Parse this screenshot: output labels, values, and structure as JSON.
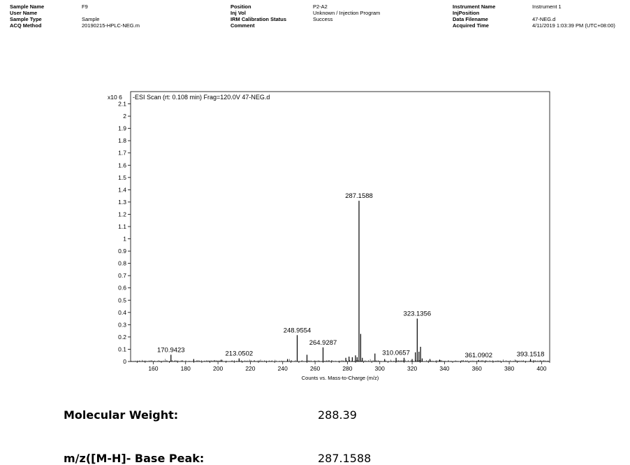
{
  "header": {
    "columns": [
      {
        "rows": [
          {
            "label": "Sample Name",
            "value": "F9"
          },
          {
            "label": "User Name",
            "value": ""
          },
          {
            "label": "Sample Type",
            "value": "Sample"
          },
          {
            "label": "ACQ Method",
            "value": "20190215-HPLC-NEG.m"
          }
        ]
      },
      {
        "rows": [
          {
            "label": "Position",
            "value": "P2-A2"
          },
          {
            "label": "Inj Vol",
            "value": "Unknown / Injection Program"
          },
          {
            "label": "IRM Calibration Status",
            "value": "Success"
          },
          {
            "label": "Comment",
            "value": ""
          }
        ]
      },
      {
        "rows": [
          {
            "label": "Instrument Name",
            "value": "Instrument 1"
          },
          {
            "label": "InjPosition",
            "value": ""
          },
          {
            "label": "Data Filename",
            "value": "47-NEG.d"
          },
          {
            "label": "Acquired Time",
            "value": "4/11/2019 1:03:39 PM (UTC+08:00)"
          }
        ]
      }
    ]
  },
  "chart_data": {
    "type": "bar",
    "title": "-ESI Scan (rt: 0.108 min) Frag=120.0V 47-NEG.d",
    "y_scale_label": "x10 6",
    "xlabel": "Counts vs. Mass-to-Charge (m/z)",
    "xlim": [
      146,
      405
    ],
    "ylim": [
      0,
      2.2
    ],
    "x_ticks": [
      160,
      180,
      200,
      220,
      240,
      260,
      280,
      300,
      320,
      340,
      360,
      380,
      400
    ],
    "y_ticks": [
      0,
      0.1,
      0.2,
      0.3,
      0.4,
      0.5,
      0.6,
      0.7,
      0.8,
      0.9,
      1,
      1.1,
      1.2,
      1.3,
      1.4,
      1.5,
      1.6,
      1.7,
      1.8,
      1.9,
      2,
      2.1
    ],
    "peaks": [
      {
        "mz": 170.9423,
        "intensity": 0.055,
        "label": "170.9423"
      },
      {
        "mz": 185.0,
        "intensity": 0.02,
        "label": ""
      },
      {
        "mz": 202.0,
        "intensity": 0.015,
        "label": ""
      },
      {
        "mz": 213.0502,
        "intensity": 0.025,
        "label": "213.0502"
      },
      {
        "mz": 243.0,
        "intensity": 0.02,
        "label": ""
      },
      {
        "mz": 248.9554,
        "intensity": 0.215,
        "label": "248.9554"
      },
      {
        "mz": 255.0,
        "intensity": 0.055,
        "label": ""
      },
      {
        "mz": 264.9287,
        "intensity": 0.115,
        "label": "264.9287"
      },
      {
        "mz": 279.0,
        "intensity": 0.03,
        "label": ""
      },
      {
        "mz": 281.0,
        "intensity": 0.04,
        "label": ""
      },
      {
        "mz": 283.0,
        "intensity": 0.035,
        "label": ""
      },
      {
        "mz": 285.0,
        "intensity": 0.05,
        "label": ""
      },
      {
        "mz": 286.0,
        "intensity": 0.035,
        "label": ""
      },
      {
        "mz": 287.1588,
        "intensity": 1.31,
        "label": "287.1588"
      },
      {
        "mz": 288.2,
        "intensity": 0.225,
        "label": ""
      },
      {
        "mz": 289.2,
        "intensity": 0.03,
        "label": ""
      },
      {
        "mz": 297.0,
        "intensity": 0.065,
        "label": ""
      },
      {
        "mz": 303.0,
        "intensity": 0.02,
        "label": ""
      },
      {
        "mz": 310.0657,
        "intensity": 0.03,
        "label": "310.0657"
      },
      {
        "mz": 315.0,
        "intensity": 0.03,
        "label": ""
      },
      {
        "mz": 320.0,
        "intensity": 0.02,
        "label": ""
      },
      {
        "mz": 322.0,
        "intensity": 0.075,
        "label": ""
      },
      {
        "mz": 323.1356,
        "intensity": 0.35,
        "label": "323.1356"
      },
      {
        "mz": 324.2,
        "intensity": 0.08,
        "label": ""
      },
      {
        "mz": 325.2,
        "intensity": 0.12,
        "label": ""
      },
      {
        "mz": 326.2,
        "intensity": 0.025,
        "label": ""
      },
      {
        "mz": 331.0,
        "intensity": 0.02,
        "label": ""
      },
      {
        "mz": 337.0,
        "intensity": 0.015,
        "label": ""
      },
      {
        "mz": 361.0902,
        "intensity": 0.012,
        "label": "361.0902"
      },
      {
        "mz": 393.1518,
        "intensity": 0.02,
        "label": "393.1518"
      }
    ]
  },
  "summary": {
    "rows": [
      {
        "label": "Molecular Weight:",
        "value": "288.39"
      },
      {
        "label": "m/z([M-H]- Base Peak:",
        "value": "287.1588"
      }
    ]
  }
}
